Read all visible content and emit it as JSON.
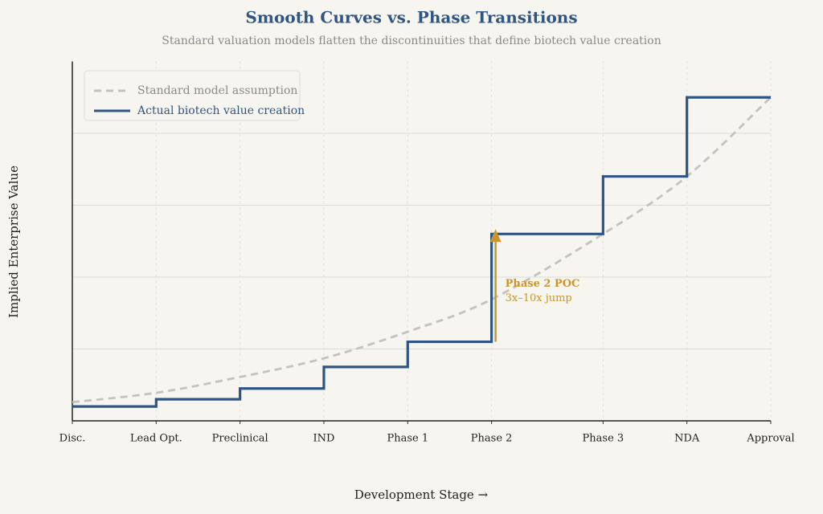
{
  "chart_data": {
    "type": "line",
    "title": "Smooth Curves vs. Phase Transitions",
    "subtitle": "Standard valuation models flatten the discontinuities that define biotech value creation",
    "x_label": "Development Stage →",
    "y_label": "Implied Enterprise Value",
    "x": [
      0,
      1,
      2,
      3,
      4,
      5,
      6.33,
      7.33,
      8.33
    ],
    "xlim": [
      0,
      8.33
    ],
    "xticks": [
      {
        "value": 0,
        "label": "Disc."
      },
      {
        "value": 1,
        "label": "Lead Opt."
      },
      {
        "value": 2,
        "label": "Preclinical"
      },
      {
        "value": 3,
        "label": "IND"
      },
      {
        "value": 4,
        "label": "Phase 1"
      },
      {
        "value": 5,
        "label": "Phase 2"
      },
      {
        "value": 6.33,
        "label": "Phase 3"
      },
      {
        "value": 7.33,
        "label": "NDA"
      },
      {
        "value": 8.33,
        "label": "Approval"
      }
    ],
    "ylim": [
      0,
      5
    ],
    "yticks": [
      1,
      2,
      3,
      4
    ],
    "grid": true,
    "legend": "upper left",
    "series": [
      {
        "name": "Standard model assumption",
        "color": "#c4c2bd",
        "style": "dashed",
        "values": [
          0.26,
          0.39,
          0.61,
          0.87,
          1.24,
          1.69,
          2.6,
          3.4,
          4.5
        ]
      },
      {
        "name": "Actual biotech value creation",
        "color": "#2f5585",
        "style": "step",
        "values": [
          0.2,
          0.3,
          0.45,
          0.75,
          1.1,
          2.6,
          3.4,
          4.5,
          4.5
        ]
      }
    ],
    "annotation": {
      "title": "Phase 2 POC",
      "text": "3x–10x jump",
      "color": "#c8952e"
    }
  }
}
